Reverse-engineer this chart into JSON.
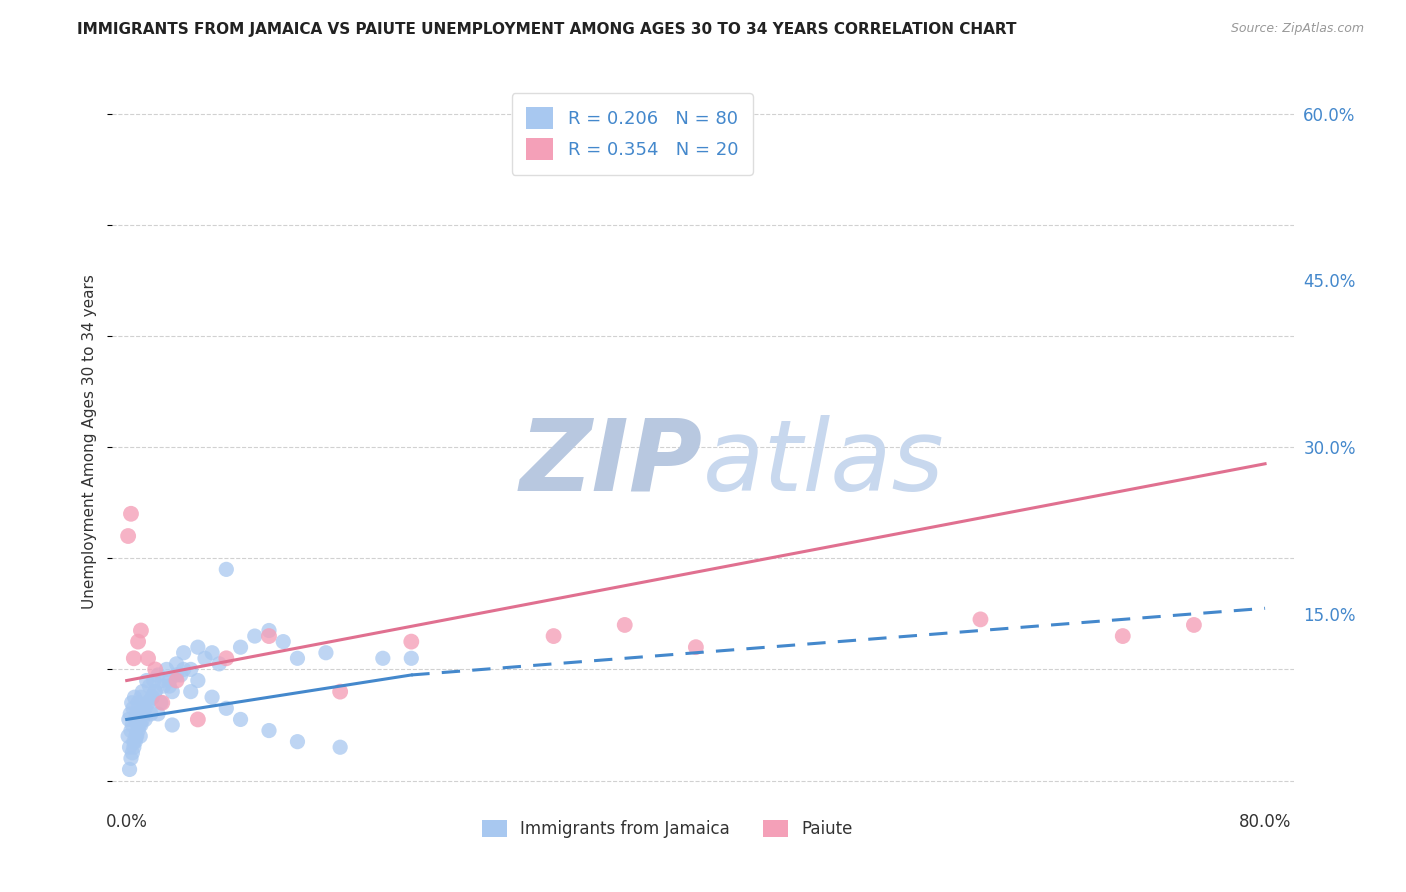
{
  "title": "IMMIGRANTS FROM JAMAICA VS PAIUTE UNEMPLOYMENT AMONG AGES 30 TO 34 YEARS CORRELATION CHART",
  "source": "Source: ZipAtlas.com",
  "ylabel": "Unemployment Among Ages 30 to 34 years",
  "x_ticks": [
    0.0,
    10.0,
    20.0,
    30.0,
    40.0,
    50.0,
    60.0,
    70.0,
    80.0
  ],
  "x_tick_labels": [
    "0.0%",
    "",
    "",
    "",
    "",
    "",
    "",
    "",
    "80.0%"
  ],
  "y_ticks_right": [
    0.0,
    15.0,
    30.0,
    45.0,
    60.0
  ],
  "y_tick_labels_right": [
    "",
    "15.0%",
    "30.0%",
    "45.0%",
    "60.0%"
  ],
  "xlim": [
    -1.0,
    82.0
  ],
  "ylim": [
    -2.0,
    63.0
  ],
  "jamaica_R": 0.206,
  "jamaica_N": 80,
  "paiute_R": 0.354,
  "paiute_N": 20,
  "jamaica_color": "#A8C8F0",
  "paiute_color": "#F4A0B8",
  "jamaica_line_color": "#4488CC",
  "paiute_line_color": "#E07090",
  "legend_text_color": "#4488CC",
  "right_axis_color": "#4488CC",
  "watermark_zip_color": "#C8D4E8",
  "watermark_atlas_color": "#C8D4E8",
  "background_color": "#FFFFFF",
  "grid_color": "#CCCCCC",
  "title_color": "#222222",
  "jamaica_solid_x0": 0.0,
  "jamaica_solid_x1": 20.0,
  "jamaica_solid_y0": 5.5,
  "jamaica_solid_y1": 9.5,
  "jamaica_dashed_x0": 20.0,
  "jamaica_dashed_x1": 80.0,
  "jamaica_dashed_y0": 9.5,
  "jamaica_dashed_y1": 15.5,
  "paiute_solid_x0": 0.0,
  "paiute_solid_x1": 80.0,
  "paiute_solid_y0": 9.0,
  "paiute_solid_y1": 28.5,
  "jamaica_scatter_x": [
    0.1,
    0.15,
    0.2,
    0.25,
    0.3,
    0.35,
    0.4,
    0.45,
    0.5,
    0.55,
    0.6,
    0.65,
    0.7,
    0.75,
    0.8,
    0.85,
    0.9,
    0.95,
    1.0,
    1.1,
    1.2,
    1.3,
    1.4,
    1.5,
    1.6,
    1.7,
    1.8,
    1.9,
    2.0,
    2.2,
    2.4,
    2.6,
    2.8,
    3.0,
    3.2,
    3.5,
    3.8,
    4.0,
    4.5,
    5.0,
    5.5,
    6.0,
    6.5,
    7.0,
    8.0,
    9.0,
    10.0,
    11.0,
    12.0,
    14.0,
    0.3,
    0.5,
    0.7,
    1.0,
    1.2,
    1.5,
    2.0,
    2.5,
    3.0,
    3.5,
    4.0,
    4.5,
    5.0,
    6.0,
    7.0,
    8.0,
    10.0,
    12.0,
    15.0,
    18.0,
    0.2,
    0.4,
    0.6,
    0.8,
    1.1,
    1.3,
    1.8,
    2.2,
    3.2,
    20.0
  ],
  "jamaica_scatter_y": [
    4.0,
    5.5,
    3.0,
    6.0,
    4.5,
    7.0,
    5.0,
    6.5,
    3.5,
    7.5,
    5.5,
    4.0,
    6.0,
    5.0,
    7.0,
    6.0,
    5.0,
    4.0,
    7.5,
    8.0,
    6.5,
    5.5,
    9.0,
    7.0,
    8.5,
    6.0,
    7.5,
    9.0,
    8.0,
    9.5,
    7.0,
    8.5,
    10.0,
    9.0,
    8.0,
    10.5,
    9.5,
    11.5,
    10.0,
    12.0,
    11.0,
    11.5,
    10.5,
    19.0,
    12.0,
    13.0,
    13.5,
    12.5,
    11.0,
    11.5,
    2.0,
    3.0,
    4.0,
    5.0,
    6.0,
    7.0,
    8.0,
    9.0,
    8.5,
    9.5,
    10.0,
    8.0,
    9.0,
    7.5,
    6.5,
    5.5,
    4.5,
    3.5,
    3.0,
    11.0,
    1.0,
    2.5,
    3.5,
    4.5,
    5.5,
    6.5,
    7.5,
    6.0,
    5.0,
    11.0
  ],
  "paiute_scatter_x": [
    0.1,
    0.3,
    0.5,
    0.8,
    1.0,
    1.5,
    2.0,
    2.5,
    3.5,
    5.0,
    7.0,
    10.0,
    15.0,
    20.0,
    30.0,
    35.0,
    40.0,
    60.0,
    70.0,
    75.0
  ],
  "paiute_scatter_y": [
    22.0,
    24.0,
    11.0,
    12.5,
    13.5,
    11.0,
    10.0,
    7.0,
    9.0,
    5.5,
    11.0,
    13.0,
    8.0,
    12.5,
    13.0,
    14.0,
    12.0,
    14.5,
    13.0,
    14.0
  ]
}
